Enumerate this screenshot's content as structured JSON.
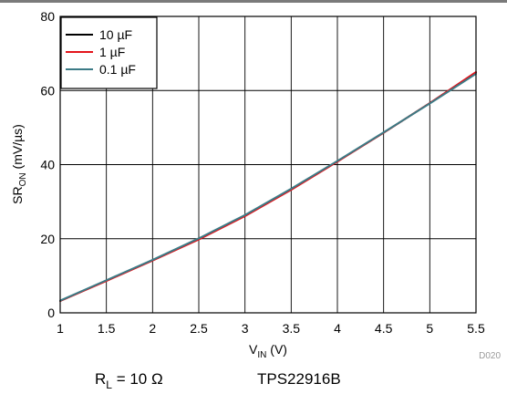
{
  "chart_data": {
    "type": "line",
    "xlabel": {
      "main": "V",
      "sub": "IN",
      "rest": " (V)"
    },
    "ylabel": {
      "main": "SR",
      "sub": "ON",
      "rest": " (mV/µs)"
    },
    "xlim": [
      1,
      5.5
    ],
    "ylim": [
      0,
      80
    ],
    "xticks": [
      1,
      1.5,
      2,
      2.5,
      3,
      3.5,
      4,
      4.5,
      5,
      5.5
    ],
    "xtick_labels": [
      "1",
      "1.5",
      "2",
      "2.5",
      "3",
      "3.5",
      "4",
      "4.5",
      "5",
      "5.5"
    ],
    "yticks": [
      0,
      20,
      40,
      60,
      80
    ],
    "ytick_labels": [
      "0",
      "20",
      "40",
      "60",
      "80"
    ],
    "grid": true,
    "legend_position": "top-left",
    "x": [
      1,
      1.5,
      2,
      2.5,
      3,
      3.5,
      4,
      4.5,
      5,
      5.5
    ],
    "series": [
      {
        "name": "10 µF",
        "color": "#000000",
        "values": [
          3.2,
          8.7,
          14.2,
          19.9,
          26.2,
          33.3,
          40.9,
          48.6,
          56.6,
          64.9
        ]
      },
      {
        "name": "1 µF",
        "color": "#e3141b",
        "values": [
          3.2,
          8.6,
          14.1,
          19.8,
          26.1,
          33.2,
          40.8,
          48.6,
          56.6,
          65.0
        ]
      },
      {
        "name": "0.1 µF",
        "color": "#3c7b86",
        "values": [
          3.3,
          8.8,
          14.3,
          20.1,
          26.4,
          33.5,
          41.0,
          48.7,
          56.5,
          64.5
        ]
      }
    ],
    "figure_id": "D020"
  },
  "conditions": {
    "load": {
      "main": "R",
      "sub": "L",
      "rest": " = 10 Ω"
    },
    "device": "TPS22916B"
  }
}
